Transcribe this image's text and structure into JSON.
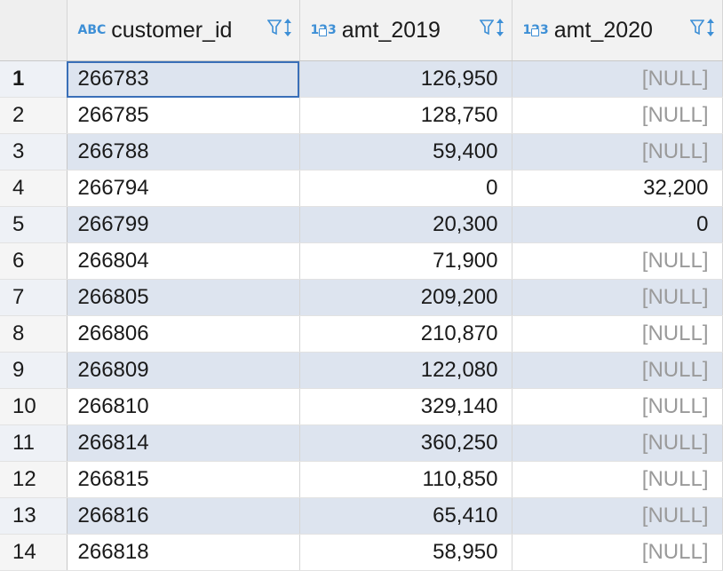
{
  "columns": [
    {
      "name": "customer_id",
      "type_badge": "ABC"
    },
    {
      "name": "amt_2019",
      "type_badge": "123"
    },
    {
      "name": "amt_2020",
      "type_badge": "123"
    }
  ],
  "rows": [
    {
      "num": "1",
      "customer_id": "266783",
      "amt_2019": "126,950",
      "amt_2020": "[NULL]"
    },
    {
      "num": "2",
      "customer_id": "266785",
      "amt_2019": "128,750",
      "amt_2020": "[NULL]"
    },
    {
      "num": "3",
      "customer_id": "266788",
      "amt_2019": "59,400",
      "amt_2020": "[NULL]"
    },
    {
      "num": "4",
      "customer_id": "266794",
      "amt_2019": "0",
      "amt_2020": "32,200"
    },
    {
      "num": "5",
      "customer_id": "266799",
      "amt_2019": "20,300",
      "amt_2020": "0"
    },
    {
      "num": "6",
      "customer_id": "266804",
      "amt_2019": "71,900",
      "amt_2020": "[NULL]"
    },
    {
      "num": "7",
      "customer_id": "266805",
      "amt_2019": "209,200",
      "amt_2020": "[NULL]"
    },
    {
      "num": "8",
      "customer_id": "266806",
      "amt_2019": "210,870",
      "amt_2020": "[NULL]"
    },
    {
      "num": "9",
      "customer_id": "266809",
      "amt_2019": "122,080",
      "amt_2020": "[NULL]"
    },
    {
      "num": "10",
      "customer_id": "266810",
      "amt_2019": "329,140",
      "amt_2020": "[NULL]"
    },
    {
      "num": "11",
      "customer_id": "266814",
      "amt_2019": "360,250",
      "amt_2020": "[NULL]"
    },
    {
      "num": "12",
      "customer_id": "266815",
      "amt_2019": "110,850",
      "amt_2020": "[NULL]"
    },
    {
      "num": "13",
      "customer_id": "266816",
      "amt_2019": "65,410",
      "amt_2020": "[NULL]"
    },
    {
      "num": "14",
      "customer_id": "266818",
      "amt_2019": "58,950",
      "amt_2020": "[NULL]"
    }
  ],
  "selected_row": "1",
  "colors": {
    "accent": "#3d8fd6",
    "stripe": "#dde4ef",
    "null_text": "#9a9a9a"
  },
  "icons": {
    "filter": "filter-icon",
    "sort": "sort-icon",
    "type_lock": "lock-icon"
  }
}
